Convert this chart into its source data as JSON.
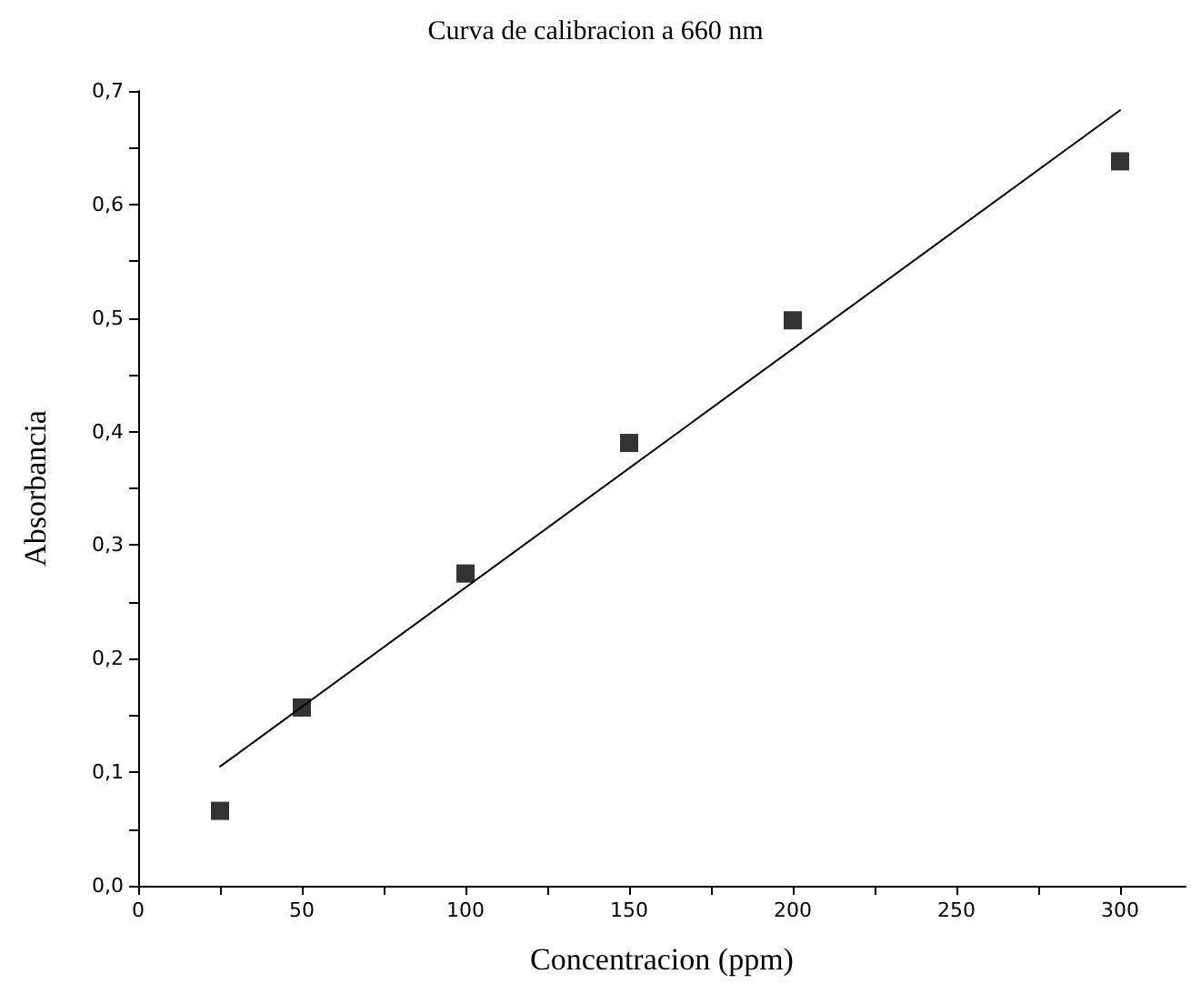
{
  "chart_data": {
    "type": "scatter",
    "title": "Curva de calibracion a 660 nm",
    "xlabel": "Concentracion (ppm)",
    "ylabel": "Absorbancia",
    "series": [
      {
        "color": "#000000",
        "marker": "square",
        "x": [
          25,
          50,
          100,
          150,
          200,
          300
        ],
        "values": [
          0.066,
          0.157,
          0.275,
          0.39,
          0.498,
          0.638
        ]
      },
      {
        "type": "line",
        "color": "#000000",
        "marker": "none",
        "line_style": "solid",
        "x": [
          25,
          300
        ],
        "values": [
          0.105,
          0.683
        ]
      }
    ],
    "xlim": [
      0,
      320
    ],
    "xticks": [
      0,
      {
        "value": 25,
        "label": null
      },
      50,
      {
        "value": 75,
        "label": null
      },
      100,
      {
        "value": 125,
        "label": null
      },
      150,
      {
        "value": 175,
        "label": null
      },
      200,
      {
        "value": 225,
        "label": null
      },
      250,
      {
        "value": 275,
        "label": null
      },
      300
    ],
    "ylim": [
      0,
      0.7
    ],
    "yticks": [
      {
        "value": 0,
        "label": "0,0"
      },
      {
        "value": 0.05,
        "label": null
      },
      {
        "value": 0.1,
        "label": "0,1"
      },
      {
        "value": 0.15,
        "label": null
      },
      {
        "value": 0.2,
        "label": "0,2"
      },
      {
        "value": 0.25,
        "label": null
      },
      {
        "value": 0.3,
        "label": "0,3"
      },
      {
        "value": 0.35,
        "label": null
      },
      {
        "value": 0.4,
        "label": "0,4"
      },
      {
        "value": 0.45,
        "label": null
      },
      {
        "value": 0.5,
        "label": "0,5"
      },
      {
        "value": 0.55,
        "label": null
      },
      {
        "value": 0.6,
        "label": "0,6"
      },
      {
        "value": 0.65,
        "label": null
      },
      {
        "value": 0.7,
        "label": "0,7"
      }
    ],
    "grid": false
  }
}
